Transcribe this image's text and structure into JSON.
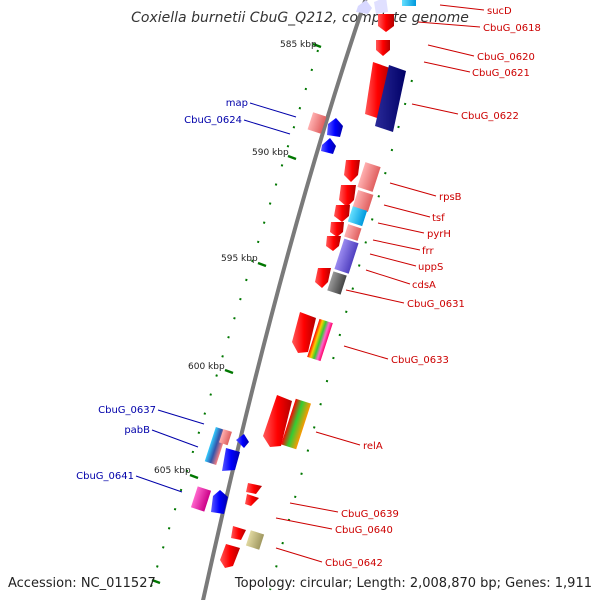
{
  "title": "Coxiella burnetii CbuG_Q212, complete genome",
  "footer": {
    "accession": "Accession: NC_011527",
    "summary": "Topology: circular; Length: 2,008,870 bp; Genes: 1,911"
  },
  "ruler": [
    "585 kbp",
    "590 kbp",
    "595 kbp",
    "600 kbp",
    "605 kbp"
  ],
  "colors": {
    "forward": "#ff0000",
    "reverse": "#0000ff",
    "forward_label": "#cc0000",
    "reverse_label": "#0000aa",
    "backbone": "#808080",
    "tick": "#007700"
  },
  "gene_labels": {
    "sucD": "sucD",
    "CbuG_0618": "CbuG_0618",
    "CbuG_0620": "CbuG_0620",
    "CbuG_0621": "CbuG_0621",
    "CbuG_0622": "CbuG_0622",
    "map": "map",
    "CbuG_0624": "CbuG_0624",
    "rpsB": "rpsB",
    "tsf": "tsf",
    "pyrH": "pyrH",
    "frr": "frr",
    "uppS": "uppS",
    "cdsA": "cdsA",
    "CbuG_0631": "CbuG_0631",
    "CbuG_0633": "CbuG_0633",
    "CbuG_0637": "CbuG_0637",
    "pabB": "pabB",
    "relA": "relA",
    "CbuG_0641": "CbuG_0641",
    "CbuG_0639": "CbuG_0639",
    "CbuG_0640": "CbuG_0640",
    "CbuG_0642": "CbuG_0642"
  }
}
